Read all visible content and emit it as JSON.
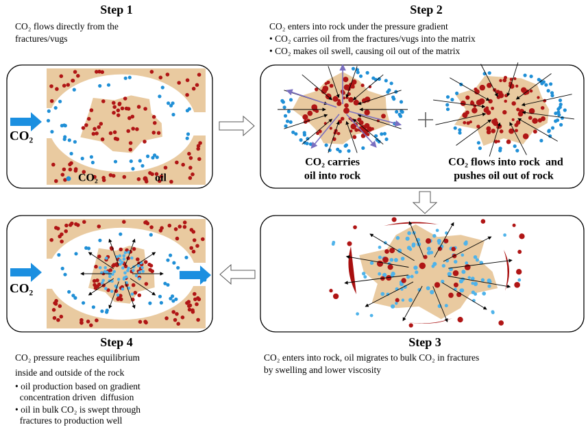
{
  "steps": [
    {
      "title": "Step 1",
      "lines": [
        "CO₂ flows directly from the",
        "fractures/vugs"
      ]
    },
    {
      "title": "Step 2",
      "lines": [
        "CO₂ enters into rock under the pressure gradient",
        "• CO₂ carries oil from the fractures/vugs into the matrix",
        "• CO₂ makes oil swell, causing oil out of the matrix"
      ]
    },
    {
      "title": "Step 3",
      "lines": [
        "CO₂ enters into rock, oil migrates to bulk CO₂ in fractures",
        "by swelling and lower viscosity"
      ]
    },
    {
      "title": "Step 4",
      "lines": [
        "CO₂ pressure  reaches equilibrium",
        "inside and outside of the rock",
        "• oil production based on gradient",
        "  concentration driven  diffusion",
        "• oil in bulk CO₂ is swept through",
        "  fractures to production well"
      ]
    }
  ],
  "panel1": {
    "inlet": "CO₂",
    "legend": [
      "CO₂",
      "oil"
    ]
  },
  "panel2": {
    "left_caption": [
      "CO₂ carries",
      "oil into rock"
    ],
    "right_caption": [
      "CO₂ flows into rock  and",
      "pushes oil out of rock"
    ]
  },
  "panel4": {
    "inlet": "CO₂"
  }
}
